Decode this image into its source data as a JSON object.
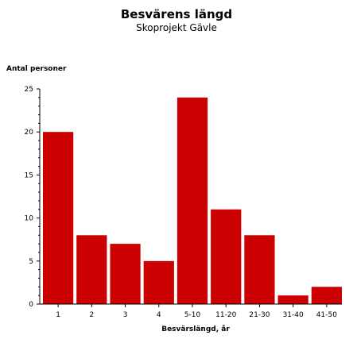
{
  "chart_data": {
    "type": "bar",
    "title": "Besvärens längd",
    "subtitle": "Skoprojekt Gävle",
    "ylabel": "Antal personer",
    "xlabel": "Besvärslängd, år",
    "categories": [
      "1",
      "2",
      "3",
      "4",
      "5-10",
      "11-20",
      "21-30",
      "31-40",
      "41-50"
    ],
    "values": [
      20,
      8,
      7,
      5,
      24,
      11,
      8,
      1,
      2
    ],
    "ylim": [
      0,
      25
    ],
    "yticks": [
      0,
      5,
      10,
      15,
      20,
      25
    ],
    "grid": false,
    "bar_color": "#cc0000"
  }
}
